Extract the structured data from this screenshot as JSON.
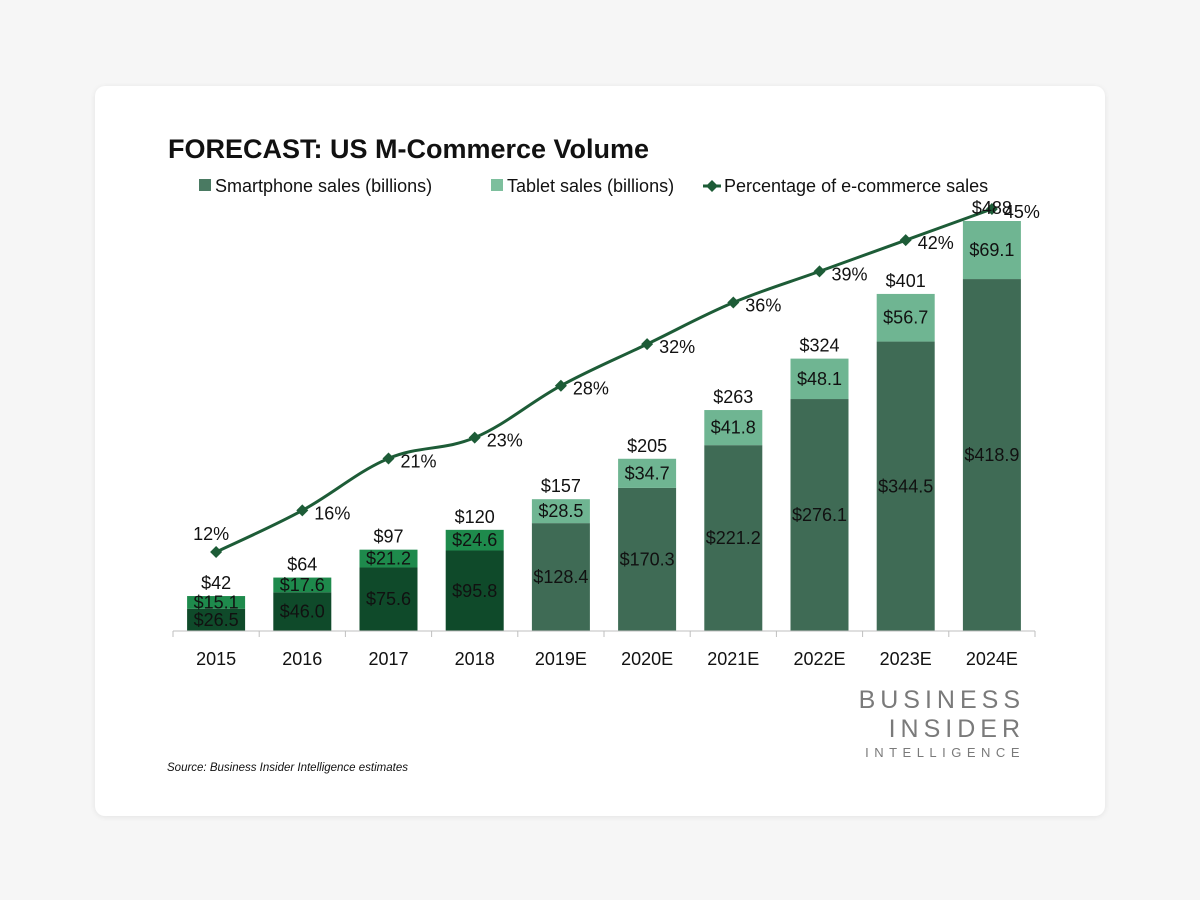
{
  "chart_data": {
    "type": "bar",
    "stacked": true,
    "title": "FORECAST: US M-Commerce Volume",
    "categories": [
      "2015",
      "2016",
      "2017",
      "2018",
      "2019E",
      "2020E",
      "2021E",
      "2022E",
      "2023E",
      "2024E"
    ],
    "series": [
      {
        "name": "Smartphone sales (billions)",
        "values": [
          26.5,
          46.0,
          75.6,
          95.8,
          128.4,
          170.3,
          221.2,
          276.1,
          344.5,
          418.9
        ],
        "labels": [
          "$26.5",
          "$46.0",
          "$75.6",
          "$95.8",
          "$128.4",
          "$170.3",
          "$221.2",
          "$276.1",
          "$344.5",
          "$418.9"
        ]
      },
      {
        "name": "Tablet sales (billions)",
        "values": [
          15.1,
          17.6,
          21.2,
          24.6,
          28.5,
          34.7,
          41.8,
          48.1,
          56.7,
          69.1
        ],
        "labels": [
          "$15.1",
          "$17.6",
          "$21.2",
          "$24.6",
          "$28.5",
          "$34.7",
          "$41.8",
          "$48.1",
          "$56.7",
          "$69.1"
        ]
      }
    ],
    "totals": {
      "values": [
        42,
        64,
        97,
        120,
        157,
        205,
        263,
        324,
        401,
        488
      ],
      "labels": [
        "$42",
        "$64",
        "$97",
        "$120",
        "$157",
        "$205",
        "$263",
        "$324",
        "$401",
        "$488"
      ]
    },
    "line_series": {
      "name": "Percentage of e-commerce sales",
      "values": [
        12,
        16,
        21,
        23,
        28,
        32,
        36,
        39,
        42,
        45
      ],
      "labels": [
        "12%",
        "16%",
        "21%",
        "23%",
        "28%",
        "32%",
        "36%",
        "39%",
        "42%",
        "45%"
      ]
    },
    "bar_range": [
      0,
      530
    ],
    "line_range": [
      0,
      50
    ],
    "colors": {
      "smartphone_actual": "#0f4a2a",
      "tablet_actual": "#1e8a4c",
      "smartphone_forecast": "#3f6b55",
      "tablet_forecast": "#6fb592",
      "line": "#1d5c37",
      "legend_smartphone": "#4a7a62",
      "legend_tablet": "#7dbf9d"
    },
    "source": "Source: Business Insider Intelligence estimates",
    "brand": {
      "line1": "BUSINESS",
      "line2": "INSIDER",
      "line3": "INTELLIGENCE"
    }
  }
}
